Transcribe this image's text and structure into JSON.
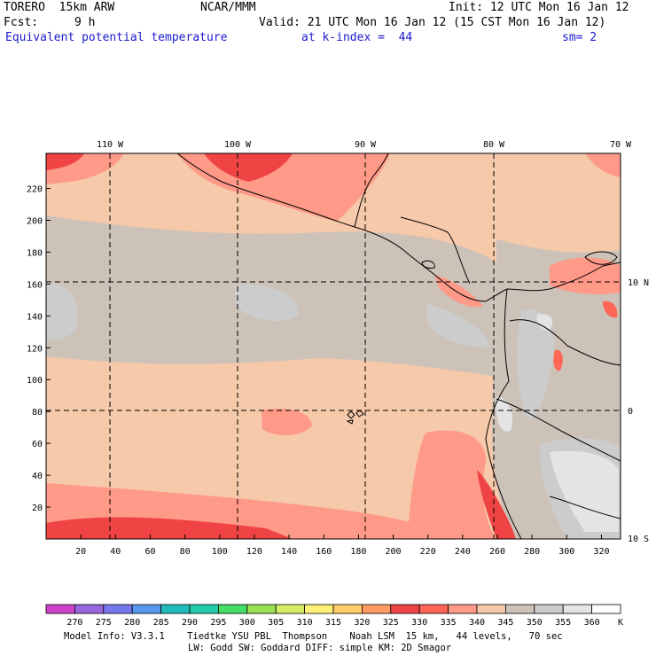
{
  "header": {
    "model": "TORERO  15km ARW",
    "center": "NCAR/MMM",
    "init": "Init: 12 UTC Mon 16 Jan 12",
    "fcst_label": "Fcst:",
    "fcst_value": "9 h",
    "valid": "Valid: 21 UTC Mon 16 Jan 12 (15 CST Mon 16 Jan 12)",
    "field": "Equivalent potential temperature",
    "level": "at k-index =  44",
    "smoothing": "sm= 2"
  },
  "map": {
    "top_lon_labels": [
      "110 W",
      "100 W",
      "90 W",
      "80 W",
      "70 W"
    ],
    "right_lat_labels": [
      "10 N",
      "0",
      "10 S"
    ],
    "y_ticks": [
      "20",
      "40",
      "60",
      "80",
      "100",
      "120",
      "140",
      "160",
      "180",
      "200",
      "220"
    ],
    "x_ticks": [
      "20",
      "40",
      "60",
      "80",
      "100",
      "120",
      "140",
      "160",
      "180",
      "200",
      "220",
      "240",
      "260",
      "280",
      "300",
      "320"
    ],
    "border_color": "#000000",
    "gridline_style": "dashed"
  },
  "colorbar": {
    "unit": "K",
    "labels": [
      "270",
      "275",
      "280",
      "285",
      "290",
      "295",
      "300",
      "305",
      "310",
      "315",
      "320",
      "325",
      "330",
      "335",
      "340",
      "345",
      "350",
      "355",
      "360"
    ],
    "colors": [
      "#cc44cc",
      "#9966dd",
      "#7777ee",
      "#5599ee",
      "#22bbbb",
      "#22ccaa",
      "#44dd66",
      "#99e055",
      "#d6ee66",
      "#fff077",
      "#ffcc66",
      "#ff9966",
      "#f04444",
      "#ff6655",
      "#ff9988",
      "#f5c9aa",
      "#cdc2b8",
      "#cccccc",
      "#e4e4e4",
      "#ffffff"
    ]
  },
  "footer": {
    "line1": "Model Info: V3.3.1    Tiedtke YSU PBL  Thompson    Noah LSM  15 km,   44 levels,   70 sec",
    "line2": "LW: Godd SW: Goddard DIFF: simple KM: 2D Smagor"
  }
}
